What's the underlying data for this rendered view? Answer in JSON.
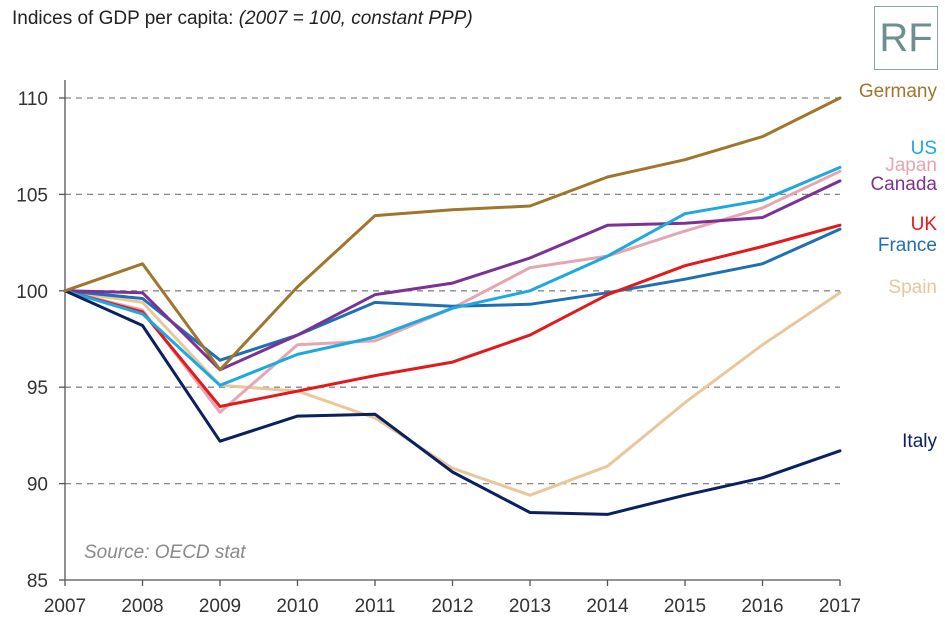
{
  "chart_data": {
    "type": "line",
    "title": "Indices of GDP per capita:",
    "subtitle": "(2007 = 100, constant PPP)",
    "source": "Source: OECD stat",
    "logo": "RF",
    "xlabel": "",
    "ylabel": "",
    "x": [
      "2007",
      "2008",
      "2009",
      "2010",
      "2011",
      "2012",
      "2013",
      "2014",
      "2015",
      "2016",
      "2017"
    ],
    "ylim": [
      85,
      110
    ],
    "yticks": [
      "85",
      "90",
      "95",
      "100",
      "105",
      "110"
    ],
    "grid": "dashed horizontal",
    "series": [
      {
        "name": "Germany",
        "color": "#A0752C",
        "values": [
          100,
          101.4,
          95.9,
          100.2,
          103.9,
          104.2,
          104.4,
          105.9,
          106.8,
          108.0,
          110.0
        ]
      },
      {
        "name": "US",
        "color": "#1CA9E1",
        "values": [
          100,
          98.8,
          95.1,
          96.7,
          97.6,
          99.1,
          100.0,
          101.8,
          104.0,
          104.7,
          106.4
        ]
      },
      {
        "name": "Japan",
        "color": "#E6A5AF",
        "values": [
          100,
          99.0,
          93.7,
          97.2,
          97.4,
          99.1,
          101.2,
          101.8,
          103.1,
          104.3,
          106.2
        ]
      },
      {
        "name": "Canada",
        "color": "#7B3294",
        "values": [
          100,
          99.9,
          95.9,
          97.7,
          99.8,
          100.4,
          101.7,
          103.4,
          103.5,
          103.8,
          105.7
        ]
      },
      {
        "name": "UK",
        "color": "#E31A1C",
        "values": [
          100,
          98.9,
          94.0,
          94.8,
          95.6,
          96.3,
          97.7,
          99.8,
          101.3,
          102.3,
          103.4
        ]
      },
      {
        "name": "France",
        "color": "#1F6FB4",
        "values": [
          100,
          99.6,
          96.4,
          97.7,
          99.4,
          99.2,
          99.3,
          99.9,
          100.6,
          101.4,
          103.2
        ]
      },
      {
        "name": "Spain",
        "color": "#E9C79A",
        "values": [
          100,
          99.4,
          95.1,
          94.8,
          93.4,
          90.8,
          89.4,
          90.9,
          94.2,
          97.2,
          99.9
        ]
      },
      {
        "name": "Italy",
        "color": "#0B2060",
        "values": [
          100,
          98.2,
          92.2,
          93.5,
          93.6,
          90.6,
          88.5,
          88.4,
          89.4,
          90.3,
          91.7
        ]
      }
    ],
    "legend": "right-edge labels"
  }
}
